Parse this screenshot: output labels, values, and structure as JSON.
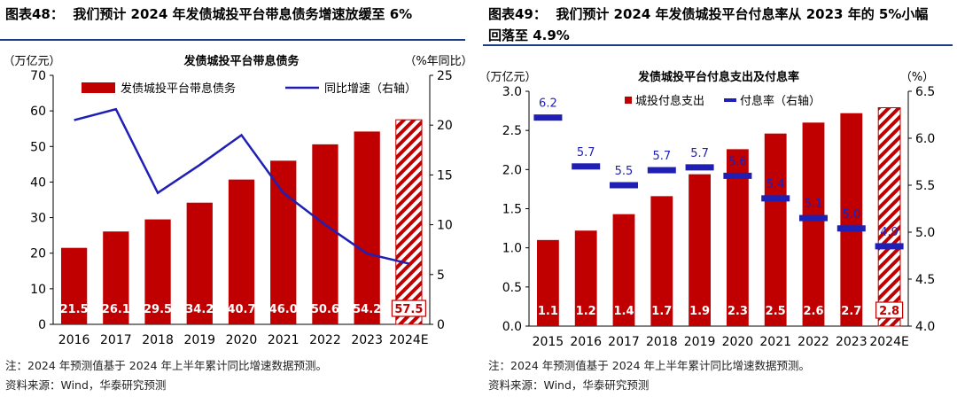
{
  "colors": {
    "bar": "#c00000",
    "line": "#1f1fb4",
    "accent": "#1f3c88",
    "label_text": "#ffffff"
  },
  "chart_data": [
    {
      "type": "bar",
      "figure_title": "图表48：  我们预计 2024 年发债城投平台带息债务增速放缓至 6%",
      "title": "发债城投平台带息债务",
      "ylabel_left": "（万亿元）",
      "ylabel_right": "（%年同比）",
      "categories": [
        "2016",
        "2017",
        "2018",
        "2019",
        "2020",
        "2021",
        "2022",
        "2023",
        "2024E"
      ],
      "forecast_index": 8,
      "series": [
        {
          "name": "发债城投平台带息债务",
          "type": "bar",
          "axis": "left",
          "values": [
            21.5,
            26.1,
            29.5,
            34.2,
            40.7,
            46.0,
            50.6,
            54.2,
            57.5
          ],
          "labels": [
            "21.5",
            "26.1",
            "29.5",
            "34.2",
            "40.7",
            "46.0",
            "50.6",
            "54.2",
            "57.5"
          ]
        },
        {
          "name": "同比增速（右轴）",
          "type": "line",
          "axis": "right",
          "values": [
            20.5,
            21.6,
            13.2,
            16.0,
            19.0,
            13.2,
            10.0,
            7.1,
            6.1
          ]
        }
      ],
      "ylim_left": [
        0,
        70
      ],
      "yticks_left": [
        0,
        10,
        20,
        30,
        40,
        50,
        60,
        70
      ],
      "ylim_right": [
        0,
        25
      ],
      "yticks_right": [
        0,
        5,
        10,
        15,
        20,
        25
      ],
      "note": "注：2024 年预测值基于 2024 年上半年累计同比增速数据预测。",
      "source": "资料来源：Wind，华泰研究预测"
    },
    {
      "type": "bar",
      "figure_title": "图表49：  我们预计 2024 年发债城投平台付息率从 2023 年的 5%小幅\n回落至 4.9%",
      "title": "发债城投平台付息支出及付息率",
      "ylabel_left": "（万亿元）",
      "ylabel_right": "（%）",
      "categories": [
        "2015",
        "2016",
        "2017",
        "2018",
        "2019",
        "2020",
        "2021",
        "2022",
        "2023",
        "2024E"
      ],
      "forecast_index": 9,
      "series": [
        {
          "name": "城投付息支出",
          "type": "bar",
          "axis": "left",
          "values": [
            1.1,
            1.22,
            1.43,
            1.66,
            1.94,
            2.26,
            2.46,
            2.6,
            2.72,
            2.79
          ],
          "labels": [
            "1.1",
            "1.2",
            "1.4",
            "1.7",
            "1.9",
            "2.3",
            "2.5",
            "2.6",
            "2.7",
            "2.8"
          ]
        },
        {
          "name": "付息率（右轴）",
          "type": "marker",
          "axis": "right",
          "values": [
            6.22,
            5.7,
            5.5,
            5.66,
            5.69,
            5.6,
            5.36,
            5.15,
            5.04,
            4.85
          ],
          "labels": [
            "6.2",
            "5.7",
            "5.5",
            "5.7",
            "5.7",
            "5.6",
            "5.4",
            "5.1",
            "5.0",
            "4.9"
          ]
        }
      ],
      "ylim_left": [
        0,
        3
      ],
      "yticks_left": [
        "0.0",
        "0.5",
        "1.0",
        "1.5",
        "2.0",
        "2.5",
        "3.0"
      ],
      "ylim_right": [
        4,
        6.5
      ],
      "yticks_right": [
        "4.0",
        "4.5",
        "5.0",
        "5.5",
        "6.0",
        "6.5"
      ],
      "note": "注：2024 年预测值基于 2024 年上半年累计同比增速数据预测。",
      "source": "资料来源：Wind，华泰研究预测"
    }
  ]
}
